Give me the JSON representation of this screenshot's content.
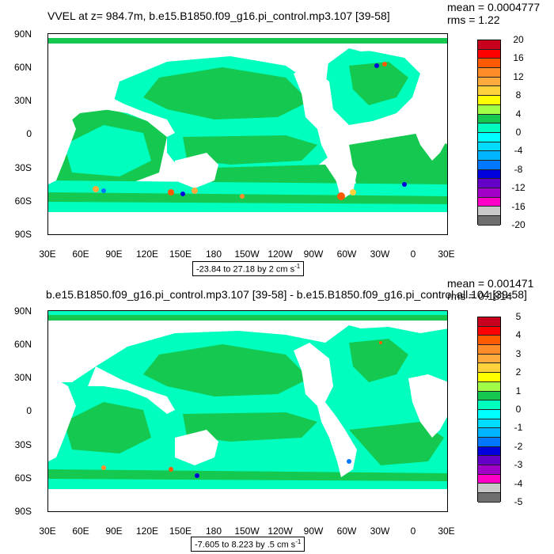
{
  "chart_data": [
    {
      "type": "heatmap",
      "title": "VVEL at z= 984.7m, b.e15.B1850.f09_g16.pi_control.mp3.107 [39-58]",
      "mean_text": "mean = 0.0004777",
      "rms_text": "rms = 1.22",
      "range_text": "-23.84 to 27.18 by 2 cm s",
      "range_unit_sup": "-1",
      "y_ticks": [
        "90N",
        "60N",
        "30N",
        "0",
        "30S",
        "60S",
        "90S"
      ],
      "x_ticks": [
        "30E",
        "60E",
        "90E",
        "120E",
        "150E",
        "180",
        "150W",
        "120W",
        "90W",
        "60W",
        "30W",
        "0",
        "30E"
      ],
      "colorbar_labels": [
        "20",
        "16",
        "12",
        "8",
        "4",
        "0",
        "-4",
        "-8",
        "-12",
        "-16",
        "-20"
      ],
      "colorbar_colors": [
        "#c8001e",
        "#ff0000",
        "#ff5a00",
        "#ff8c28",
        "#ffaa3c",
        "#ffd23c",
        "#ffff00",
        "#a0ff46",
        "#14c850",
        "#00ffbe",
        "#00ffff",
        "#00dcff",
        "#00b4ff",
        "#0078ff",
        "#0000dc",
        "#6400c8",
        "#a000c8",
        "#ff00c8",
        "#c8c8c8",
        "#6e6e6e"
      ]
    },
    {
      "type": "heatmap",
      "title": "b.e15.B1850.f09_g16.pi_control.mp3.107 [39-58] - b.e15.B1850.f09_g16.pi_control.all.104 [39-58]",
      "mean_text": "mean = 0.001471",
      "rms_text": "rms = 0.1814",
      "range_text": "-7.605 to 8.223 by .5 cm s",
      "range_unit_sup": "-1",
      "y_ticks": [
        "90N",
        "60N",
        "30N",
        "0",
        "30S",
        "60S",
        "90S"
      ],
      "x_ticks": [
        "30E",
        "60E",
        "90E",
        "120E",
        "150E",
        "180",
        "150W",
        "120W",
        "90W",
        "60W",
        "30W",
        "0",
        "30E"
      ],
      "colorbar_labels": [
        "5",
        "4",
        "3",
        "2",
        "1",
        "0",
        "-1",
        "-2",
        "-3",
        "-4",
        "-5"
      ],
      "colorbar_colors": [
        "#c8001e",
        "#ff0000",
        "#ff5a00",
        "#ff8c28",
        "#ffaa3c",
        "#ffd23c",
        "#ffff00",
        "#a0ff46",
        "#14c850",
        "#00ffbe",
        "#00ffff",
        "#00dcff",
        "#00b4ff",
        "#0078ff",
        "#0000dc",
        "#6400c8",
        "#a000c8",
        "#ff00c8",
        "#c8c8c8",
        "#6e6e6e"
      ]
    }
  ]
}
